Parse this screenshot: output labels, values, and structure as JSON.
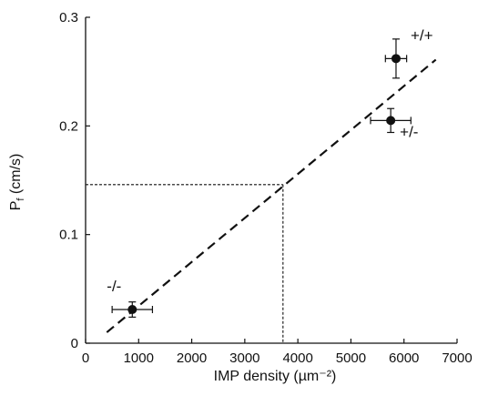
{
  "chart_data": {
    "type": "scatter",
    "title": "",
    "xlabel": "IMP density (µm⁻²)",
    "ylabel": "Pf (cm/s)",
    "ylabel_main": "P",
    "ylabel_sub": "f",
    "ylabel_rest": " (cm/s)",
    "xlim": [
      0,
      7000
    ],
    "ylim": [
      0,
      0.3
    ],
    "x_ticks": [
      0,
      1000,
      2000,
      3000,
      4000,
      5000,
      6000,
      7000
    ],
    "x_tick_labels": [
      "0",
      "1000",
      "2000",
      "3000",
      "4000",
      "5000",
      "6000",
      "7000"
    ],
    "y_ticks": [
      0,
      0.1,
      0.2,
      0.3
    ],
    "y_tick_labels": [
      "0",
      "0.1",
      "0.2",
      "0.3"
    ],
    "grid": false,
    "points": [
      {
        "label": "-/-",
        "x": 880,
        "y": 0.031,
        "x_err": 380,
        "y_err": 0.007
      },
      {
        "label": "+/-",
        "x": 5750,
        "y": 0.205,
        "x_err": 380,
        "y_err": 0.011
      },
      {
        "label": "+/+",
        "x": 5850,
        "y": 0.262,
        "x_err": 200,
        "y_err": 0.018
      }
    ],
    "fit_line": {
      "x": [
        400,
        6600
      ],
      "y": [
        0.01,
        0.261
      ],
      "style": "dashed"
    },
    "reference_lines": {
      "x": 3720,
      "y": 0.146,
      "style": "dotted"
    },
    "colors": {
      "marker": "#111111",
      "line": "#111111"
    }
  }
}
